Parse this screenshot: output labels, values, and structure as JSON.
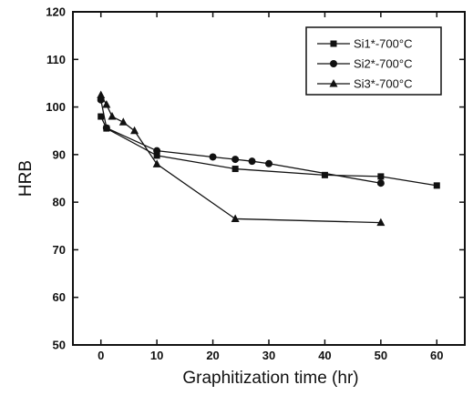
{
  "chart_data": {
    "type": "line",
    "title": "",
    "xlabel": "Graphitization time (hr)",
    "ylabel": "HRB",
    "xlim": [
      -5,
      65
    ],
    "ylim": [
      50,
      120
    ],
    "x_ticks": [
      0,
      10,
      20,
      30,
      40,
      50,
      60
    ],
    "y_ticks": [
      50,
      60,
      70,
      80,
      90,
      100,
      110,
      120
    ],
    "grid": false,
    "legend_position": "top-right",
    "line_color": "#111111",
    "series": [
      {
        "name": "Si1*-700°C",
        "marker": "square",
        "points": [
          [
            0,
            98
          ],
          [
            1,
            95.5
          ],
          [
            10,
            89.8
          ],
          [
            24,
            87
          ],
          [
            40,
            85.7
          ],
          [
            50,
            85.4
          ],
          [
            60,
            83.5
          ]
        ]
      },
      {
        "name": "Si2*-700°C",
        "marker": "circle",
        "points": [
          [
            0,
            101.5
          ],
          [
            1,
            95.6
          ],
          [
            10,
            90.8
          ],
          [
            20,
            89.5
          ],
          [
            24,
            89
          ],
          [
            27,
            88.6
          ],
          [
            30,
            88.1
          ],
          [
            50,
            84
          ]
        ]
      },
      {
        "name": "Si3*-700°C",
        "marker": "triangle",
        "points": [
          [
            0,
            102.5
          ],
          [
            1,
            100.5
          ],
          [
            2,
            98
          ],
          [
            4,
            96.8
          ],
          [
            6,
            95
          ],
          [
            10,
            88
          ],
          [
            24,
            76.5
          ],
          [
            50,
            75.7
          ]
        ]
      }
    ]
  }
}
